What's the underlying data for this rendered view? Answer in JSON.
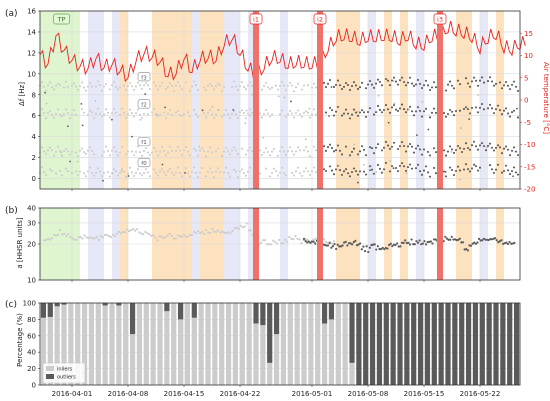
{
  "panel_labels": [
    "(a)",
    "(b)",
    "(c)"
  ],
  "x_axis": {
    "start": "2016-03-28",
    "end": "2016-05-27",
    "tick_dates": [
      "2016-04-01",
      "2016-04-08",
      "2016-04-15",
      "2016-04-22",
      "2016-05-01",
      "2016-05-08",
      "2016-05-15",
      "2016-05-22"
    ],
    "tick_labels": [
      "2016-04-01",
      "2016-04-08",
      "2016-04-15",
      "2016-04-22",
      "2016-05-01",
      "2016-05-08",
      "2016-05-15",
      "2016-05-22"
    ]
  },
  "annotations": {
    "tp": {
      "label": "TP",
      "start": "2016-03-28",
      "end": "2016-04-02",
      "color": "#d8f3c8"
    },
    "events": [
      {
        "label": "i1",
        "date": "2016-04-24"
      },
      {
        "label": "i2",
        "date": "2016-05-02"
      },
      {
        "label": "i3",
        "date": "2016-05-17"
      }
    ],
    "event_color": "#f0706a",
    "orange_days": [
      "2016-04-07",
      "2016-04-11",
      "2016-04-12",
      "2016-04-13",
      "2016-04-14",
      "2016-04-15",
      "2016-04-17",
      "2016-04-18",
      "2016-04-19",
      "2016-05-04",
      "2016-05-05",
      "2016-05-06",
      "2016-05-10",
      "2016-05-12",
      "2016-05-19",
      "2016-05-20",
      "2016-05-24"
    ],
    "orange_color": "#fde2c0",
    "blue_days": [
      "2016-04-03",
      "2016-04-04",
      "2016-04-06",
      "2016-04-16",
      "2016-04-20",
      "2016-04-21",
      "2016-04-23",
      "2016-04-27",
      "2016-05-08",
      "2016-05-14",
      "2016-05-22"
    ],
    "blue_color": "#e6e8f7"
  },
  "chart_data": [
    {
      "type": "scatter",
      "panel": "(a)",
      "ylabel": "Δf [Hz]",
      "ylim": [
        -1,
        16
      ],
      "yticks": [
        0,
        2,
        4,
        6,
        8,
        10,
        12,
        14,
        16
      ],
      "grid": true,
      "series": [
        {
          "name": "f0",
          "base": 0.6,
          "inlier_color": "#cccccc",
          "outlier_color": "#5a5a5a"
        },
        {
          "name": "f1",
          "base": 2.6,
          "inlier_color": "#cccccc",
          "outlier_color": "#5a5a5a"
        },
        {
          "name": "f2",
          "base": 6.2,
          "inlier_color": "#cccccc",
          "outlier_color": "#5a5a5a"
        },
        {
          "name": "f3",
          "base": 8.8,
          "inlier_color": "#cccccc",
          "outlier_color": "#5a5a5a"
        }
      ],
      "mode_labels": [
        "f0",
        "f1",
        "f2",
        "f3"
      ],
      "secondary_axis": {
        "label": "Air temperature [°C]",
        "ylim": [
          -20,
          20
        ],
        "yticks": [
          -20,
          -15,
          -10,
          -5,
          0,
          5,
          10,
          15
        ],
        "color": "#e8221c",
        "series": [
          {
            "name": "Air temperature",
            "values": [
              10.2,
              8.1,
              14.5,
              11.2,
              9.0,
              7.6,
              7.2,
              9.5,
              7.4,
              8.1,
              6.6,
              5.2,
              8.9,
              10.6,
              9.8,
              8.8,
              5.6,
              6.1,
              9.5,
              6.6,
              9.1,
              9.7,
              9.2,
              12.5,
              14.0,
              10.6,
              7.1,
              5.6,
              7.4,
              9.5,
              9.2,
              7.8,
              8.4,
              8.1,
              7.9,
              8.3,
              11.6,
              13.9,
              14.4,
              14.0,
              13.2,
              14.1,
              14.0,
              14.3,
              14.1,
              13.3,
              14.4,
              12.5,
              12.2,
              14.2,
              14.2,
              16.2,
              15.5,
              15.0,
              14.1,
              11.6,
              13.9,
              14.8,
              11.8,
              11.3,
              12.6
            ]
          }
        ]
      }
    },
    {
      "type": "scatter",
      "panel": "(b)",
      "ylabel": "a [HHSR units]",
      "yscale": "log",
      "ylim": [
        10,
        40
      ],
      "yticks": [
        10,
        20,
        30,
        40
      ],
      "grid": true,
      "series": [
        {
          "name": "inliers",
          "color": "#cccccc",
          "daily_mean": [
            21.5,
            23.0,
            25.0,
            23.5,
            22.5,
            23.0,
            22.0,
            22.5,
            23.0,
            24.5,
            25.5,
            27.0,
            25.0,
            24.5,
            22.5,
            23.5,
            23.0,
            22.5,
            24.0,
            24.5,
            25.5,
            26.0,
            24.5,
            25.5,
            28.0,
            29.0,
            21.0,
            20.5,
            20.5,
            21.0,
            21.5,
            22.5,
            21.0,
            21.5,
            21.0,
            21.0
          ]
        },
        {
          "name": "outliers",
          "color": "#5a5a5a",
          "daily_mean": [
            21.0,
            20.5,
            20.5,
            20.0,
            19.5,
            19.0,
            20.0,
            20.5,
            21.0,
            18.5,
            18.0,
            19.0,
            17.5,
            18.5,
            19.5,
            20.0,
            20.5,
            21.0,
            20.5,
            20.0,
            21.0,
            21.5,
            22.0,
            22.5,
            22.0,
            19.0,
            18.5,
            21.5,
            22.0,
            22.5,
            22.0,
            21.0,
            20.5
          ]
        }
      ]
    },
    {
      "type": "bar",
      "panel": "(c)",
      "stacked": true,
      "ylabel": "Percentage (%)",
      "ylim": [
        0,
        100
      ],
      "yticks": [
        0,
        20,
        40,
        60,
        80,
        100
      ],
      "grid": true,
      "legend": {
        "position": "lower-left",
        "entries": [
          "inliers",
          "outliers"
        ]
      },
      "series": [
        {
          "name": "inliers",
          "color": "#cccccc",
          "values": [
            82,
            83,
            96,
            98,
            100,
            100,
            100,
            100,
            100,
            97,
            100,
            97,
            100,
            62,
            100,
            100,
            100,
            100,
            90,
            100,
            80,
            100,
            82,
            100,
            100,
            100,
            100,
            100,
            100,
            100,
            100,
            75,
            73,
            27,
            62,
            100,
            100,
            100,
            100,
            100,
            100,
            75,
            80,
            100,
            100,
            27,
            0,
            0,
            0,
            0,
            0,
            0,
            0,
            0,
            0,
            0,
            0,
            0,
            0,
            0,
            0,
            0,
            0,
            0,
            0,
            0,
            0,
            0,
            0,
            0
          ]
        },
        {
          "name": "outliers",
          "color": "#5a5a5a",
          "values": [
            18,
            17,
            4,
            2,
            0,
            0,
            0,
            0,
            0,
            3,
            0,
            3,
            0,
            38,
            0,
            0,
            0,
            0,
            10,
            0,
            20,
            0,
            18,
            0,
            0,
            0,
            0,
            0,
            0,
            0,
            0,
            25,
            27,
            73,
            38,
            0,
            0,
            0,
            0,
            0,
            0,
            25,
            20,
            0,
            0,
            73,
            100,
            100,
            100,
            100,
            100,
            100,
            100,
            100,
            100,
            100,
            100,
            100,
            100,
            100,
            100,
            100,
            100,
            100,
            100,
            100,
            100,
            100,
            100,
            100
          ]
        }
      ]
    }
  ]
}
